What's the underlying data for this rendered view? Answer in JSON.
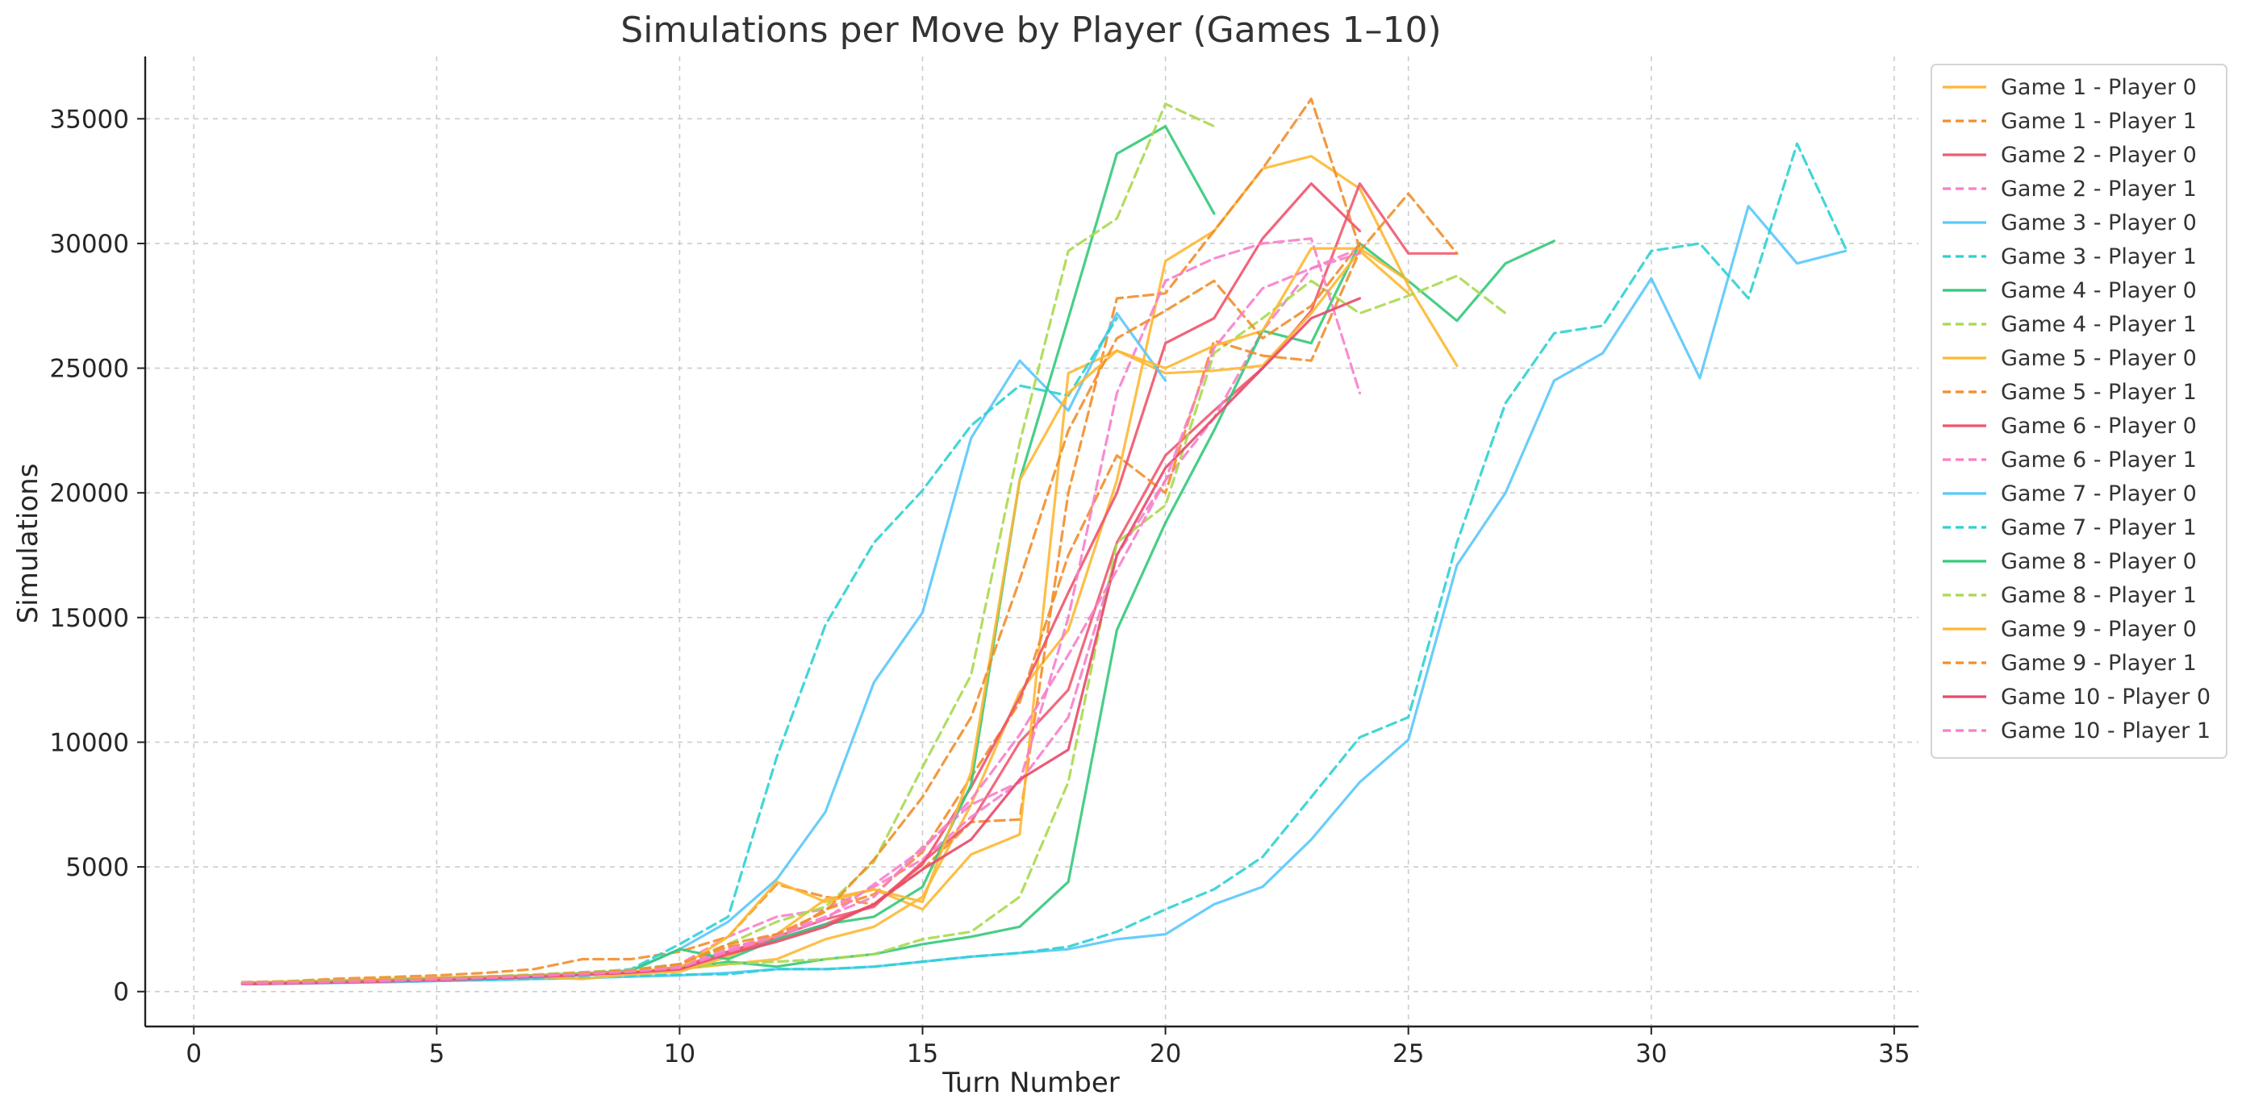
{
  "chart_data": {
    "type": "line",
    "title": "Simulations per Move by Player (Games 1–10)",
    "xlabel": "Turn Number",
    "ylabel": "Simulations",
    "xlim": [
      -1,
      35.5
    ],
    "ylim": [
      -1400,
      37500
    ],
    "xticks": [
      0,
      5,
      10,
      15,
      20,
      25,
      30,
      35
    ],
    "yticks": [
      0,
      5000,
      10000,
      15000,
      20000,
      25000,
      30000,
      35000
    ],
    "grid": true,
    "legend_position": "top-right",
    "series": [
      {
        "name": "Game 1 - Player 0",
        "color": "#FDB833",
        "style": "solid",
        "x": [
          1,
          2,
          3,
          4,
          5,
          6,
          7,
          8,
          9,
          10,
          11,
          12,
          13,
          14,
          15,
          16,
          17,
          18,
          19,
          20,
          21,
          22,
          23,
          24,
          25,
          26
        ],
        "y": [
          350,
          400,
          450,
          500,
          560,
          600,
          650,
          700,
          780,
          900,
          1100,
          1300,
          2100,
          2600,
          3800,
          7500,
          12000,
          14500,
          20500,
          29300,
          30500,
          33000,
          33500,
          32200,
          28300,
          25100
        ]
      },
      {
        "name": "Game 1 - Player 1",
        "color": "#F28E2B",
        "style": "dashed",
        "x": [
          1,
          2,
          3,
          4,
          5,
          6,
          7,
          8,
          9,
          10,
          11,
          12,
          13,
          14,
          15,
          16,
          17,
          18,
          19,
          20,
          21,
          22,
          23,
          24
        ],
        "y": [
          380,
          420,
          520,
          580,
          650,
          750,
          900,
          1300,
          1300,
          1600,
          2200,
          4300,
          3800,
          3500,
          4900,
          6800,
          6900,
          20000,
          27800,
          28000,
          30500,
          33000,
          35800,
          29800
        ]
      },
      {
        "name": "Game 2 - Player 0",
        "color": "#EF5A6F",
        "style": "solid",
        "x": [
          1,
          2,
          3,
          4,
          5,
          6,
          7,
          8,
          9,
          10,
          11,
          12,
          13,
          14,
          15,
          16,
          17,
          18,
          19,
          20,
          21,
          22,
          23,
          24,
          25,
          26
        ],
        "y": [
          300,
          320,
          380,
          420,
          500,
          550,
          620,
          700,
          750,
          1000,
          1600,
          2200,
          2900,
          3400,
          5200,
          6800,
          10000,
          12100,
          18000,
          21500,
          23300,
          25000,
          27300,
          32400,
          29600,
          29600
        ]
      },
      {
        "name": "Game 2 - Player 1",
        "color": "#F77FCB",
        "style": "dashed",
        "x": [
          1,
          2,
          3,
          4,
          5,
          6,
          7,
          8,
          9,
          10,
          11,
          12,
          13,
          14,
          15,
          16,
          17,
          18,
          19,
          20,
          21,
          22,
          23,
          24
        ],
        "y": [
          360,
          380,
          420,
          470,
          540,
          600,
          680,
          780,
          880,
          1100,
          2200,
          3000,
          3300,
          4200,
          5300,
          7000,
          8400,
          11000,
          17500,
          20500,
          23000,
          26500,
          29000,
          29800
        ]
      },
      {
        "name": "Game 3 - Player 0",
        "color": "#5AC8FA",
        "style": "solid",
        "x": [
          1,
          2,
          3,
          4,
          5,
          6,
          7,
          8,
          9,
          10,
          11,
          12,
          13,
          14,
          15,
          16,
          17,
          18,
          19,
          20,
          21,
          22,
          23,
          24,
          25,
          26,
          27,
          28,
          29,
          30,
          31,
          32,
          33,
          34
        ],
        "y": [
          300,
          320,
          350,
          380,
          420,
          460,
          500,
          540,
          600,
          650,
          750,
          900,
          900,
          1000,
          1200,
          1400,
          1550,
          1700,
          2100,
          2300,
          3500,
          4200,
          6100,
          8400,
          10100,
          17100,
          20000,
          24500,
          25600,
          28600,
          24600,
          31500,
          29200,
          29700
        ]
      },
      {
        "name": "Game 3 - Player 1",
        "color": "#2ED1D1",
        "style": "dashed",
        "x": [
          1,
          2,
          3,
          4,
          5,
          6,
          7,
          8,
          9,
          10,
          11,
          12,
          13,
          14,
          15,
          16,
          17,
          18,
          19,
          20,
          21,
          22,
          23,
          24,
          25,
          26,
          27,
          28,
          29,
          30,
          31,
          32,
          33,
          34
        ],
        "y": [
          320,
          340,
          370,
          400,
          440,
          480,
          520,
          560,
          620,
          680,
          700,
          900,
          900,
          1000,
          1200,
          1400,
          1550,
          1800,
          2400,
          3300,
          4100,
          5400,
          7800,
          10200,
          11000,
          18000,
          23600,
          26400,
          26700,
          29700,
          30000,
          27800,
          34000,
          29800
        ]
      },
      {
        "name": "Game 4 - Player 0",
        "color": "#34C97A",
        "style": "solid",
        "x": [
          1,
          2,
          3,
          4,
          5,
          6,
          7,
          8,
          9,
          10,
          11,
          12,
          13,
          14,
          15,
          16,
          17,
          18,
          19,
          20,
          21,
          22,
          23,
          24,
          25,
          26,
          27,
          28
        ],
        "y": [
          350,
          370,
          400,
          450,
          500,
          560,
          620,
          700,
          800,
          900,
          1200,
          1000,
          1300,
          1500,
          1900,
          2200,
          2600,
          4400,
          14500,
          18800,
          22500,
          26500,
          26000,
          30000,
          28500,
          26900,
          29200,
          30100
        ]
      },
      {
        "name": "Game 4 - Player 1",
        "color": "#A8D94F",
        "style": "dashed",
        "x": [
          1,
          2,
          3,
          4,
          5,
          6,
          7,
          8,
          9,
          10,
          11,
          12,
          13,
          14,
          15,
          16,
          17,
          18,
          19,
          20,
          21,
          22,
          23,
          24,
          25,
          26,
          27
        ],
        "y": [
          360,
          380,
          420,
          460,
          520,
          580,
          640,
          720,
          820,
          1000,
          1100,
          1200,
          1300,
          1500,
          2100,
          2400,
          3800,
          8400,
          18000,
          19500,
          25600,
          27000,
          28500,
          27200,
          27900,
          28700,
          27200
        ]
      },
      {
        "name": "Game 5 - Player 0",
        "color": "#FDB833",
        "style": "solid",
        "x": [
          1,
          2,
          3,
          4,
          5,
          6,
          7,
          8,
          9,
          10,
          11,
          12,
          13,
          14,
          15,
          16,
          17,
          18,
          19,
          20,
          21,
          22,
          23,
          24,
          25
        ],
        "y": [
          330,
          360,
          400,
          450,
          500,
          550,
          600,
          500,
          700,
          800,
          1400,
          2300,
          3700,
          4100,
          3300,
          5500,
          6300,
          24800,
          25700,
          24800,
          24900,
          25100,
          27200,
          29700,
          28000
        ]
      },
      {
        "name": "Game 5 - Player 1",
        "color": "#F28E2B",
        "style": "dashed",
        "x": [
          1,
          2,
          3,
          4,
          5,
          6,
          7,
          8,
          9,
          10,
          11,
          12,
          13,
          14,
          15,
          16,
          17,
          18,
          19,
          20,
          21,
          22,
          23,
          24,
          25,
          26
        ],
        "y": [
          340,
          370,
          410,
          460,
          520,
          580,
          650,
          750,
          850,
          1100,
          1800,
          2100,
          3300,
          3900,
          5600,
          8600,
          11600,
          17500,
          21500,
          20000,
          26100,
          25500,
          25300,
          29700,
          32000,
          29600
        ]
      },
      {
        "name": "Game 6 - Player 0",
        "color": "#F0546A",
        "style": "solid",
        "x": [
          1,
          2,
          3,
          4,
          5,
          6,
          7,
          8,
          9,
          10,
          11,
          12,
          13,
          14,
          15,
          16,
          17,
          18,
          19,
          20,
          21,
          22,
          23,
          24
        ],
        "y": [
          310,
          340,
          380,
          420,
          470,
          530,
          600,
          680,
          760,
          900,
          1600,
          2100,
          2700,
          3500,
          5100,
          8200,
          11800,
          16000,
          20000,
          26000,
          27000,
          30200,
          32400,
          30500
        ]
      },
      {
        "name": "Game 6 - Player 1",
        "color": "#F77FCB",
        "style": "dashed",
        "x": [
          1,
          2,
          3,
          4,
          5,
          6,
          7,
          8,
          9,
          10,
          11,
          12,
          13,
          14,
          15,
          16,
          17,
          18,
          19,
          20,
          21,
          22,
          23,
          24
        ],
        "y": [
          330,
          360,
          400,
          440,
          500,
          560,
          630,
          710,
          800,
          1000,
          1700,
          2300,
          3000,
          3800,
          5800,
          7500,
          8400,
          15000,
          24000,
          28500,
          29400,
          30000,
          30200,
          24000
        ]
      },
      {
        "name": "Game 7 - Player 0",
        "color": "#5AC8FA",
        "style": "solid",
        "x": [
          1,
          2,
          3,
          4,
          5,
          6,
          7,
          8,
          9,
          10,
          11,
          12,
          13,
          14,
          15,
          16,
          17,
          18,
          19,
          20
        ],
        "y": [
          300,
          330,
          370,
          410,
          460,
          520,
          600,
          700,
          850,
          1700,
          2800,
          4500,
          7200,
          12400,
          15200,
          22200,
          25300,
          23300,
          27200,
          24500
        ]
      },
      {
        "name": "Game 7 - Player 1",
        "color": "#2ED1D1",
        "style": "dashed",
        "x": [
          1,
          2,
          3,
          4,
          5,
          6,
          7,
          8,
          9,
          10,
          11,
          12,
          13,
          14,
          15,
          16,
          17,
          18,
          19
        ],
        "y": [
          320,
          350,
          390,
          430,
          480,
          540,
          620,
          730,
          900,
          1900,
          3000,
          9400,
          14700,
          18000,
          20100,
          22700,
          24300,
          23900,
          27000
        ]
      },
      {
        "name": "Game 8 - Player 0",
        "color": "#34C97A",
        "style": "solid",
        "x": [
          1,
          2,
          3,
          4,
          5,
          6,
          7,
          8,
          9,
          10,
          11,
          12,
          13,
          14,
          15,
          16,
          17,
          18,
          19,
          20,
          21
        ],
        "y": [
          340,
          370,
          410,
          460,
          520,
          580,
          650,
          730,
          830,
          1700,
          1300,
          2100,
          2700,
          3000,
          4200,
          8300,
          20500,
          27000,
          33600,
          34700,
          31200
        ]
      },
      {
        "name": "Game 8 - Player 1",
        "color": "#A8D94F",
        "style": "dashed",
        "x": [
          1,
          2,
          3,
          4,
          5,
          6,
          7,
          8,
          9,
          10,
          11,
          12,
          13,
          14,
          15,
          16,
          17,
          18,
          19,
          20,
          21
        ],
        "y": [
          350,
          380,
          420,
          470,
          530,
          600,
          680,
          770,
          870,
          1100,
          1900,
          2800,
          3400,
          5200,
          9000,
          12700,
          22000,
          29700,
          31000,
          35600,
          34700
        ]
      },
      {
        "name": "Game 9 - Player 0",
        "color": "#FDB833",
        "style": "solid",
        "x": [
          1,
          2,
          3,
          4,
          5,
          6,
          7,
          8,
          9,
          10,
          11,
          12,
          13,
          14,
          15,
          16,
          17,
          18,
          19,
          20,
          21,
          22,
          23,
          24,
          25
        ],
        "y": [
          320,
          350,
          390,
          430,
          490,
          550,
          620,
          700,
          800,
          950,
          2200,
          4400,
          3600,
          4100,
          3600,
          8800,
          20500,
          24000,
          25700,
          25000,
          25900,
          26500,
          29800,
          29800,
          28500
        ]
      },
      {
        "name": "Game 9 - Player 1",
        "color": "#F28E2B",
        "style": "dashed",
        "x": [
          1,
          2,
          3,
          4,
          5,
          6,
          7,
          8,
          9,
          10,
          11,
          12,
          13,
          14,
          15,
          16,
          17,
          18,
          19,
          20,
          21,
          22,
          23,
          24
        ],
        "y": [
          330,
          360,
          400,
          450,
          510,
          580,
          650,
          740,
          850,
          1100,
          1900,
          2300,
          3200,
          5300,
          7800,
          11000,
          16500,
          22500,
          26200,
          27300,
          28500,
          26200,
          27500,
          30000
        ]
      },
      {
        "name": "Game 10 - Player 0",
        "color": "#E84A6A",
        "style": "solid",
        "x": [
          1,
          2,
          3,
          4,
          5,
          6,
          7,
          8,
          9,
          10,
          11,
          12,
          13,
          14,
          15,
          16,
          17,
          18,
          19,
          20,
          21,
          22,
          23,
          24
        ],
        "y": [
          300,
          330,
          370,
          410,
          460,
          520,
          590,
          670,
          760,
          900,
          1500,
          2000,
          2600,
          3500,
          4900,
          6100,
          8500,
          9700,
          17500,
          21000,
          23000,
          25000,
          27000,
          27800
        ]
      },
      {
        "name": "Game 10 - Player 1",
        "color": "#F77FCB",
        "style": "dashed",
        "x": [
          1,
          2,
          3,
          4,
          5,
          6,
          7,
          8,
          9,
          10,
          11,
          12,
          13,
          14,
          15,
          16,
          17,
          18,
          19,
          20,
          21,
          22,
          23,
          24
        ],
        "y": [
          320,
          350,
          390,
          430,
          490,
          550,
          620,
          700,
          800,
          950,
          1600,
          2200,
          2900,
          4300,
          5700,
          7700,
          10300,
          13500,
          16900,
          20500,
          25800,
          28200,
          29000,
          29600
        ]
      }
    ]
  }
}
